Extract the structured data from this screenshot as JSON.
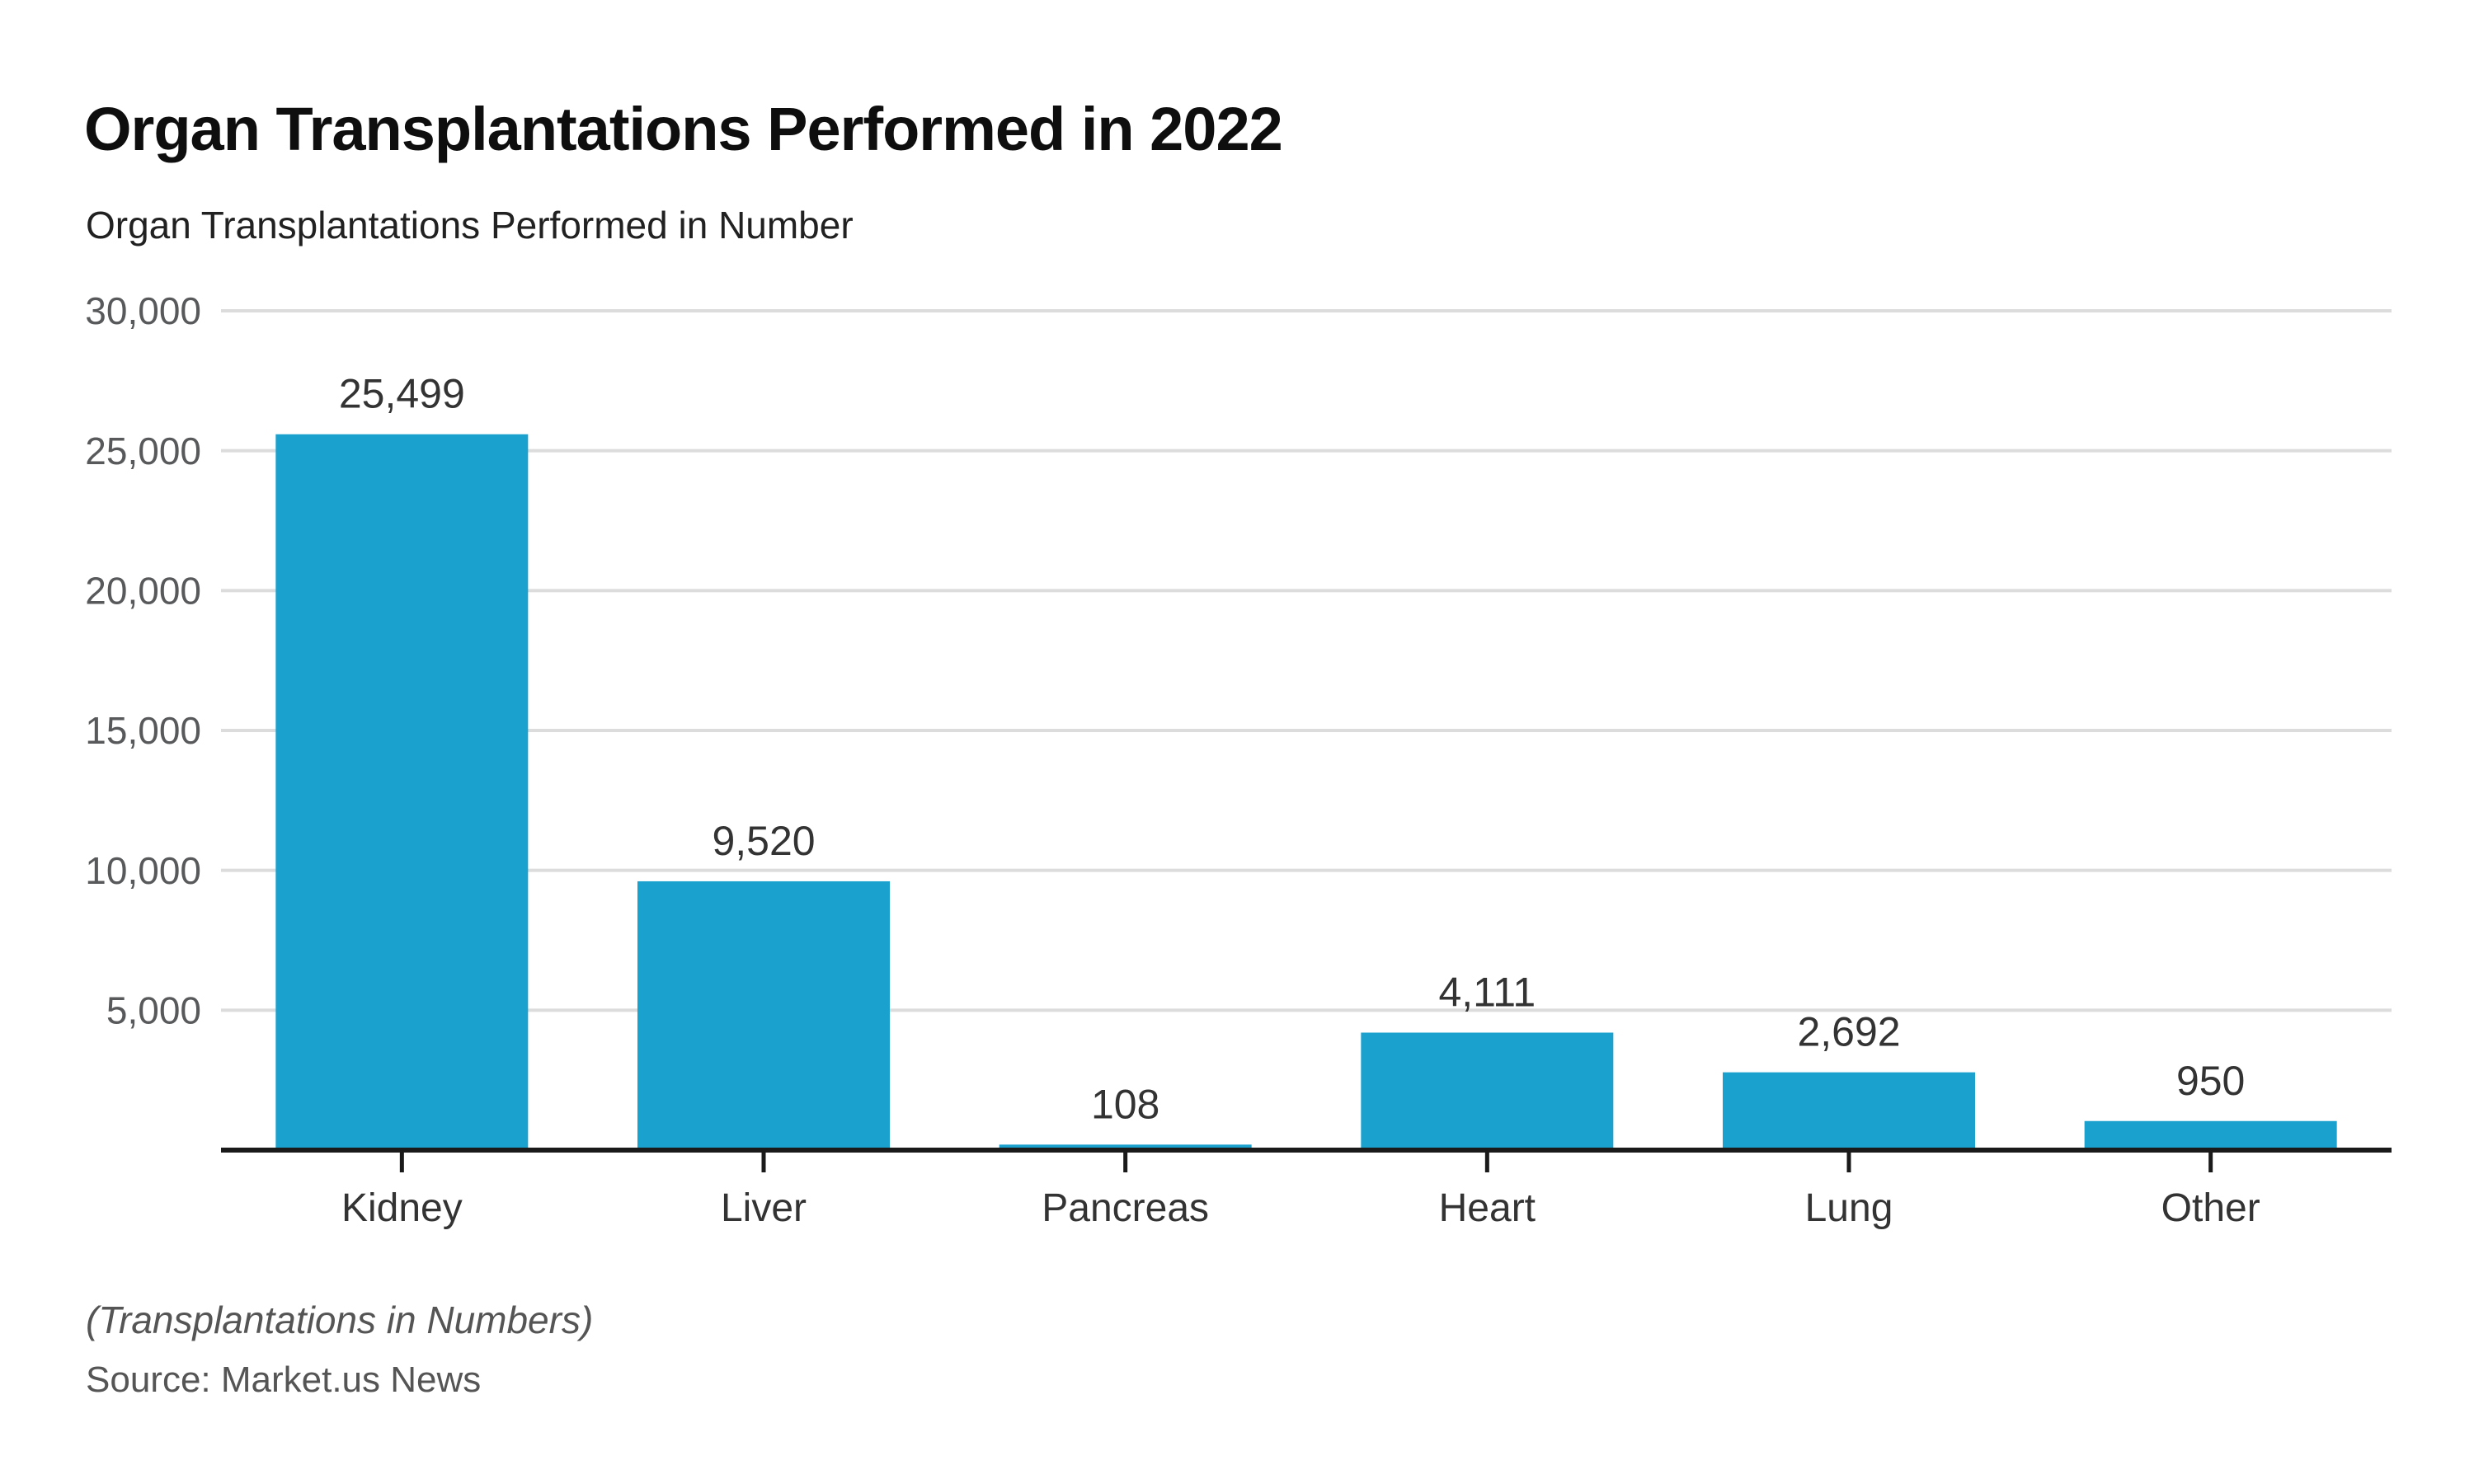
{
  "chart_data": {
    "type": "bar",
    "title": "Organ Transplantations Performed in 2022",
    "subtitle": "Organ Transplantations Performed in Number",
    "categories": [
      "Kidney",
      "Liver",
      "Pancreas",
      "Heart",
      "Lung",
      "Other"
    ],
    "values": [
      25499,
      9520,
      108,
      4111,
      2692,
      950
    ],
    "value_labels": [
      "25,499",
      "9,520",
      "108",
      "4,111",
      "2,692",
      "950"
    ],
    "xlabel": "",
    "ylabel": "",
    "ylim": [
      0,
      30000
    ],
    "ytick_interval": 5000,
    "yticks": [
      5000,
      10000,
      15000,
      20000,
      25000,
      30000
    ],
    "ytick_labels": [
      "5,000",
      "10,000",
      "15,000",
      "20,000",
      "25,000",
      "30,000"
    ],
    "grid": true,
    "legend_position": "none",
    "colors": {
      "bar": "#1aa1ce",
      "gridline": "#dcdcdc",
      "axis_line": "#1a1a1a",
      "y_tick_label": "#58595b",
      "data_label": "#333333",
      "category_label": "#333333",
      "title": "#0e0e0e",
      "footnote": "#555555"
    },
    "footnote": "(Transplantations in Numbers)",
    "source": "Source: Market.us News"
  }
}
